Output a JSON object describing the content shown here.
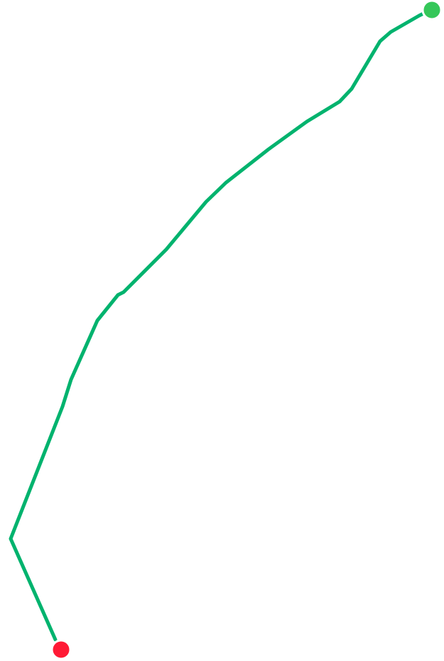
{
  "route": {
    "line_color": "#00b36e",
    "start_marker_color": "#ff1a35",
    "end_marker_color": "#35c759",
    "start_marker_icon": "start-point-icon",
    "end_marker_icon": "end-point-icon"
  }
}
